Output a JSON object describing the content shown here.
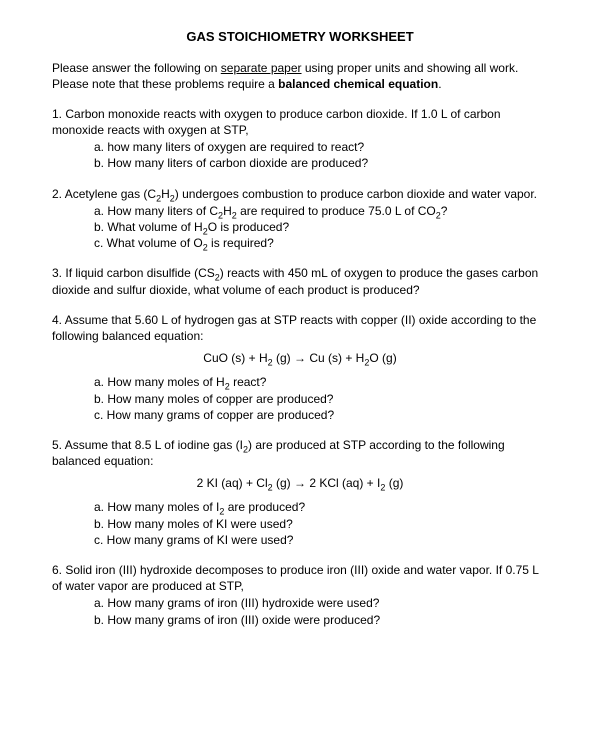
{
  "title": "GAS STOICHIOMETRY WORKSHEET",
  "intro_part1": "Please answer the following on ",
  "intro_underline": "separate paper",
  "intro_part2": " using proper units and showing all work.  Please note that these problems require a ",
  "intro_bold": "balanced chemical equation",
  "intro_part3": ".",
  "p1": {
    "num": "1.",
    "text": "Carbon monoxide reacts with oxygen to produce carbon dioxide.  If 1.0 L of carbon monoxide reacts with oxygen at STP,",
    "a": "a.  how many liters of oxygen are required to react?",
    "b": "b.  How many liters of carbon dioxide are produced?"
  },
  "p2": {
    "num": "2.",
    "text_pre": "Acetylene gas (C",
    "text_post": ") undergoes combustion to produce carbon dioxide and water vapor.",
    "a_pre": "a.  How many liters of C",
    "a_mid": " are required to produce 75.0  L of CO",
    "a_post": "?",
    "b_pre": "b.  What volume of H",
    "b_post": "O is produced?",
    "c_pre": "c.  What volume of O",
    "c_post": " is required?"
  },
  "p3": {
    "num": "3.",
    "text_pre": "If liquid carbon disulfide (CS",
    "text_post": ") reacts with 450 mL of oxygen to produce the gases carbon dioxide and sulfur dioxide, what volume of each product is produced?"
  },
  "p4": {
    "num": "4.",
    "text": "Assume that 5.60 L of hydrogen gas at STP reacts with copper (II) oxide according to the following balanced equation:",
    "eq_1": "CuO (s)  +  H",
    "eq_2": " (g)  →  Cu (s)  +  H",
    "eq_3": "O (g)",
    "a_pre": "a.  How many moles of H",
    "a_post": " react?",
    "b": "b.  How many moles of copper are produced?",
    "c": "c.  How many grams of copper are produced?"
  },
  "p5": {
    "num": "5.",
    "text_pre": "Assume that 8.5 L of iodine gas (I",
    "text_post": ") are produced at STP according to the following balanced equation:",
    "eq_1": "2 KI (aq)  +  Cl",
    "eq_2": " (g)   →   2 KCl (aq)  +  I",
    "eq_3": " (g)",
    "a_pre": "a.  How many moles of I",
    "a_post": " are produced?",
    "b": "b.  How many moles of KI were used?",
    "c": "c.  How many grams of KI were used?"
  },
  "p6": {
    "num": "6.",
    "text": "Solid iron (III) hydroxide decomposes to produce iron (III) oxide and water vapor.  If 0.75 L of water vapor are produced at STP,",
    "a": "a.  How many grams of iron (III) hydroxide were used?",
    "b": "b.  How many grams of iron (III) oxide were produced?"
  }
}
